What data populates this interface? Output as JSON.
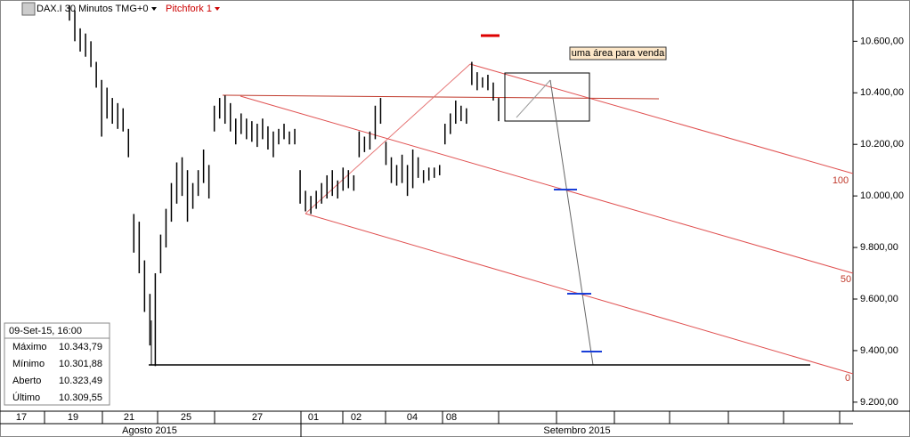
{
  "chart_data": {
    "type": "range-bar",
    "title": "DAX.I 30 Minutos TMG+0",
    "study": "Pitchfork 1",
    "annotation": "uma área para venda",
    "pitchfork_labels": [
      "100",
      "50",
      "0"
    ],
    "days": [
      "17",
      "19",
      "21",
      "25",
      "27",
      "01",
      "02",
      "04",
      "08"
    ],
    "months": [
      "Agosto 2015",
      "Setembro 2015"
    ],
    "ylim": [
      9165,
      10760
    ],
    "yticks": [
      {
        "value": 10600,
        "label": "10.600,00"
      },
      {
        "value": 10400,
        "label": "10.400,00"
      },
      {
        "value": 10200,
        "label": "10.200,00"
      },
      {
        "value": 10000,
        "label": "10.000,00"
      },
      {
        "value": 9800,
        "label": "9.800,00"
      },
      {
        "value": 9600,
        "label": "9.600,00"
      },
      {
        "value": 9400,
        "label": "9.400,00"
      },
      {
        "value": 9200,
        "label": "9.200,00"
      }
    ],
    "info": {
      "date": "09-Set-15, 16:00",
      "rows": [
        [
          "Máximo",
          "10.343,79"
        ],
        [
          "Mínimo",
          "10.301,88"
        ],
        [
          "Aberto",
          "10.323,49"
        ],
        [
          "Último",
          "10.309,55"
        ]
      ]
    },
    "color": "#000000",
    "bars": [
      [
        10740,
        10680
      ],
      [
        10720,
        10600
      ],
      [
        10650,
        10560
      ],
      [
        10630,
        10540
      ],
      [
        10600,
        10500
      ],
      [
        10520,
        10420
      ],
      [
        10450,
        10230
      ],
      [
        10420,
        10300
      ],
      [
        10380,
        10280
      ],
      [
        10360,
        10260
      ],
      [
        10340,
        10250
      ],
      [
        10260,
        10150
      ],
      [
        9930,
        9780
      ],
      [
        9900,
        9700
      ],
      [
        9750,
        9550
      ],
      [
        9620,
        9420
      ],
      [
        9700,
        9340
      ],
      [
        9850,
        9700
      ],
      [
        9950,
        9800
      ],
      [
        10050,
        9900
      ],
      [
        10130,
        9970
      ],
      [
        10150,
        10000
      ],
      [
        10100,
        9900
      ],
      [
        10050,
        9950
      ],
      [
        10100,
        10000
      ],
      [
        10180,
        10050
      ],
      [
        10120,
        9990
      ],
      [
        10350,
        10250
      ],
      [
        10380,
        10300
      ],
      [
        10390,
        10280
      ],
      [
        10360,
        10250
      ],
      [
        10300,
        10200
      ],
      [
        10320,
        10240
      ],
      [
        10300,
        10220
      ],
      [
        10290,
        10210
      ],
      [
        10280,
        10190
      ],
      [
        10300,
        10220
      ],
      [
        10270,
        10180
      ],
      [
        10250,
        10150
      ],
      [
        10260,
        10200
      ],
      [
        10280,
        10220
      ],
      [
        10250,
        10200
      ],
      [
        10260,
        10200
      ],
      [
        10100,
        9970
      ],
      [
        10020,
        9940
      ],
      [
        10000,
        9930
      ],
      [
        10020,
        9950
      ],
      [
        10050,
        9970
      ],
      [
        10080,
        9990
      ],
      [
        10100,
        10000
      ],
      [
        10060,
        9990
      ],
      [
        10110,
        10020
      ],
      [
        10100,
        10030
      ],
      [
        10080,
        10020
      ],
      [
        10250,
        10150
      ],
      [
        10230,
        10170
      ],
      [
        10250,
        10180
      ],
      [
        10350,
        10220
      ],
      [
        10380,
        10280
      ],
      [
        10210,
        10120
      ],
      [
        10150,
        10050
      ],
      [
        10120,
        10040
      ],
      [
        10160,
        10050
      ],
      [
        10120,
        10000
      ],
      [
        10180,
        10030
      ],
      [
        10150,
        10070
      ],
      [
        10100,
        10050
      ],
      [
        10110,
        10060
      ],
      [
        10110,
        10070
      ],
      [
        10120,
        10080
      ],
      [
        10280,
        10200
      ],
      [
        10320,
        10240
      ],
      [
        10370,
        10280
      ],
      [
        10350,
        10290
      ],
      [
        10340,
        10280
      ],
      [
        10520,
        10430
      ],
      [
        10480,
        10410
      ],
      [
        10460,
        10420
      ],
      [
        10470,
        10410
      ],
      [
        10440,
        10370
      ],
      [
        10380,
        10290
      ]
    ]
  }
}
